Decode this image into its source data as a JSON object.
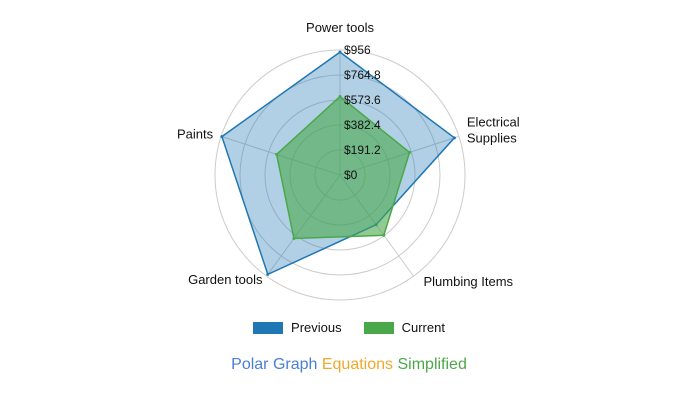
{
  "chart_data": {
    "type": "radar",
    "categories": [
      "Power tools",
      "Electrical Supplies",
      "Plumbing Items",
      "Garden tools",
      "Paints"
    ],
    "category_lines": [
      [
        "Power tools"
      ],
      [
        "Electrical",
        "Supplies"
      ],
      [
        "Plumbing Items"
      ],
      [
        "Garden tools"
      ],
      [
        "Paints"
      ]
    ],
    "rmax": 956,
    "ticks": [
      0,
      191.2,
      382.4,
      573.6,
      764.8,
      956
    ],
    "tick_labels": [
      "$0",
      "$191.2",
      "$382.4",
      "$573.6",
      "$764.8",
      "$956"
    ],
    "series": [
      {
        "name": "Previous",
        "values": [
          940,
          920,
          470,
          940,
          950
        ],
        "color": "#1f77b4"
      },
      {
        "name": "Current",
        "values": [
          600,
          560,
          570,
          600,
          510
        ],
        "color": "#4aa84a"
      }
    ],
    "grid": true,
    "legend_position": "bottom"
  },
  "legend": {
    "previous_label": "Previous",
    "current_label": "Current"
  },
  "caption": {
    "part1": "Polar Graph",
    "part1_color": "#4a7fd4",
    "part2": "Equations",
    "part2_color": "#f0a82a",
    "part3": "Simplified",
    "part3_color": "#4aa84a"
  }
}
